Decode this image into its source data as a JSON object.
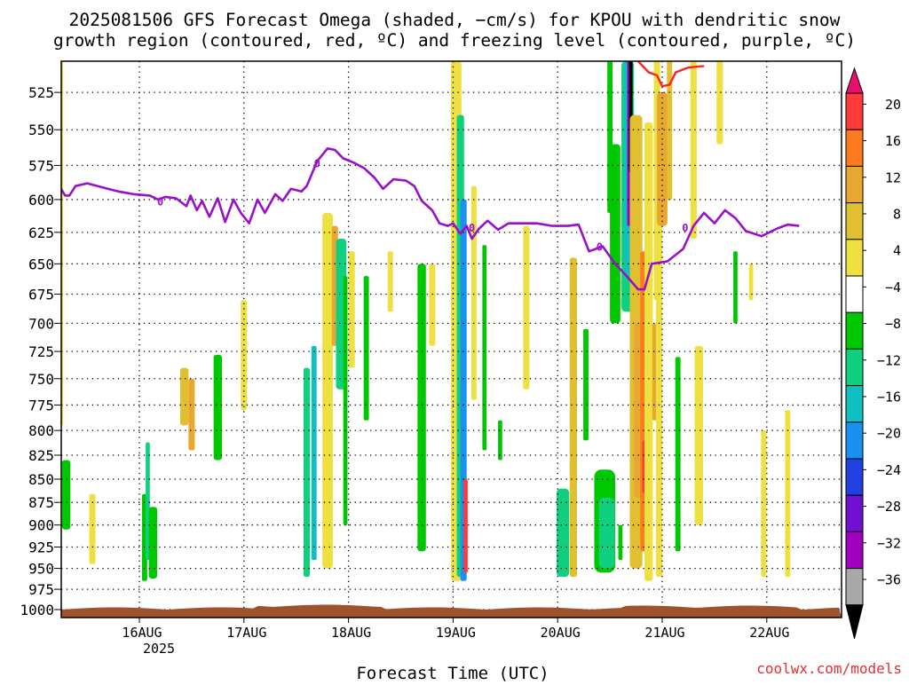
{
  "chart_data": {
    "type": "heatmap",
    "title_line1": "2025081506 GFS Forecast Omega (shaded, −cm/s) for KPOU with dendritic snow",
    "title_line2": "growth region (contoured, red, ºC) and freezing level (contoured, purple, ºC)",
    "xlabel": "Forecast Time (UTC)",
    "x_ticks": [
      "16AUG",
      "17AUG",
      "18AUG",
      "19AUG",
      "20AUG",
      "21AUG",
      "22AUG"
    ],
    "x_year_label": "2025",
    "xlim_days": [
      "15AUG 06Z",
      "22AUG 18Z"
    ],
    "y_ticks": [
      525,
      550,
      575,
      600,
      625,
      650,
      675,
      700,
      725,
      750,
      775,
      800,
      825,
      850,
      875,
      900,
      925,
      950,
      975,
      1000
    ],
    "ylim_hpa": [
      1010,
      505
    ],
    "y_scale": "pressure (inverted, log-like)",
    "grid": true,
    "colorbar": {
      "labels": [
        "20",
        "16",
        "12",
        "8",
        "4",
        "−4",
        "−8",
        "−12",
        "−16",
        "−20",
        "−24",
        "−28",
        "−32",
        "−36"
      ],
      "colors": [
        "#ff3a3a",
        "#ff7a1e",
        "#e8a830",
        "#e0c030",
        "#ede040",
        "#ffffff",
        "#00c800",
        "#10d080",
        "#10c0c0",
        "#1a90f0",
        "#2040e0",
        "#7010d0",
        "#a000c0",
        "#a8a8a8"
      ],
      "top_arrow_color": "#e8106c",
      "bottom_arrow_color": "#000000"
    },
    "freezing_level_color": "#9a10c8",
    "freezing_level_label": "0",
    "dgz_color": "#ff2020",
    "ground_color": "#a0522d",
    "freezing_level_hpa": [
      [
        0.0,
        592
      ],
      [
        0.04,
        597
      ],
      [
        0.08,
        597
      ],
      [
        0.14,
        590
      ],
      [
        0.25,
        588
      ],
      [
        0.4,
        591
      ],
      [
        0.55,
        594
      ],
      [
        0.7,
        596
      ],
      [
        0.85,
        597
      ],
      [
        0.93,
        600
      ],
      [
        1.0,
        598
      ],
      [
        1.1,
        599
      ],
      [
        1.2,
        605
      ],
      [
        1.24,
        597
      ],
      [
        1.3,
        608
      ],
      [
        1.35,
        601
      ],
      [
        1.42,
        613
      ],
      [
        1.5,
        599
      ],
      [
        1.57,
        617
      ],
      [
        1.65,
        600
      ],
      [
        1.72,
        610
      ],
      [
        1.8,
        618
      ],
      [
        1.88,
        600
      ],
      [
        1.95,
        610
      ],
      [
        2.05,
        596
      ],
      [
        2.12,
        601
      ],
      [
        2.2,
        592
      ],
      [
        2.3,
        594
      ],
      [
        2.35,
        590
      ],
      [
        2.45,
        572
      ],
      [
        2.55,
        563
      ],
      [
        2.62,
        564
      ],
      [
        2.7,
        570
      ],
      [
        2.8,
        573
      ],
      [
        2.9,
        577
      ],
      [
        3.0,
        584
      ],
      [
        3.08,
        592
      ],
      [
        3.18,
        585
      ],
      [
        3.3,
        586
      ],
      [
        3.38,
        590
      ],
      [
        3.45,
        601
      ],
      [
        3.55,
        608
      ],
      [
        3.62,
        618
      ],
      [
        3.7,
        620
      ],
      [
        3.75,
        618
      ],
      [
        3.82,
        626
      ],
      [
        3.88,
        620
      ],
      [
        3.93,
        630
      ],
      [
        4.0,
        622
      ],
      [
        4.08,
        616
      ],
      [
        4.18,
        623
      ],
      [
        4.28,
        618
      ],
      [
        4.4,
        618
      ],
      [
        4.55,
        618
      ],
      [
        4.7,
        620
      ],
      [
        4.85,
        620
      ],
      [
        4.95,
        619
      ],
      [
        5.05,
        640
      ],
      [
        5.18,
        636
      ],
      [
        5.3,
        650
      ],
      [
        5.42,
        661
      ],
      [
        5.52,
        671
      ],
      [
        5.58,
        671
      ],
      [
        5.65,
        650
      ],
      [
        5.8,
        648
      ],
      [
        5.95,
        638
      ],
      [
        6.05,
        620
      ],
      [
        6.15,
        610
      ],
      [
        6.25,
        618
      ],
      [
        6.35,
        608
      ],
      [
        6.45,
        614
      ],
      [
        6.55,
        624
      ],
      [
        6.7,
        628
      ],
      [
        6.85,
        622
      ],
      [
        6.95,
        619
      ],
      [
        7.06,
        620
      ]
    ],
    "dgz_hpa": [
      [
        5.52,
        505
      ],
      [
        5.62,
        512
      ],
      [
        5.7,
        514
      ],
      [
        5.75,
        521
      ],
      [
        5.82,
        520
      ],
      [
        5.88,
        512
      ],
      [
        6.0,
        509
      ],
      [
        6.15,
        508
      ]
    ],
    "omega_blobs": [
      {
        "t": 0.0,
        "hpa": [
          505,
          795
        ],
        "w": 0.04,
        "v": 4
      },
      {
        "t": 0.05,
        "hpa": [
          830,
          905
        ],
        "w": 0.08,
        "v": -6
      },
      {
        "t": 0.3,
        "hpa": [
          866,
          945
        ],
        "w": 0.06,
        "v": 4
      },
      {
        "t": 0.8,
        "hpa": [
          866,
          965
        ],
        "w": 0.05,
        "v": -6
      },
      {
        "t": 0.83,
        "hpa": [
          812,
          940
        ],
        "w": 0.04,
        "v": -10
      },
      {
        "t": 0.88,
        "hpa": [
          880,
          962
        ],
        "w": 0.08,
        "v": -6
      },
      {
        "t": 1.18,
        "hpa": [
          740,
          795
        ],
        "w": 0.08,
        "v": 6
      },
      {
        "t": 1.25,
        "hpa": [
          750,
          820
        ],
        "w": 0.06,
        "v": 10
      },
      {
        "t": 1.5,
        "hpa": [
          728,
          830
        ],
        "w": 0.08,
        "v": -6
      },
      {
        "t": 1.75,
        "hpa": [
          680,
          780
        ],
        "w": 0.06,
        "v": 4
      },
      {
        "t": 2.35,
        "hpa": [
          740,
          960
        ],
        "w": 0.06,
        "v": -8
      },
      {
        "t": 2.42,
        "hpa": [
          720,
          940
        ],
        "w": 0.05,
        "v": -12
      },
      {
        "t": 2.55,
        "hpa": [
          610,
          950
        ],
        "w": 0.1,
        "v": 4
      },
      {
        "t": 2.62,
        "hpa": [
          620,
          720
        ],
        "w": 0.06,
        "v": 8
      },
      {
        "t": 2.68,
        "hpa": [
          630,
          760
        ],
        "w": 0.1,
        "v": -8
      },
      {
        "t": 2.72,
        "hpa": [
          660,
          900
        ],
        "w": 0.04,
        "v": -6
      },
      {
        "t": 2.78,
        "hpa": [
          640,
          740
        ],
        "w": 0.06,
        "v": 4
      },
      {
        "t": 2.92,
        "hpa": [
          660,
          790
        ],
        "w": 0.05,
        "v": -6
      },
      {
        "t": 3.15,
        "hpa": [
          640,
          690
        ],
        "w": 0.05,
        "v": 4
      },
      {
        "t": 3.45,
        "hpa": [
          650,
          930
        ],
        "w": 0.08,
        "v": -6
      },
      {
        "t": 3.55,
        "hpa": [
          650,
          720
        ],
        "w": 0.06,
        "v": 4
      },
      {
        "t": 3.78,
        "hpa": [
          505,
          965
        ],
        "w": 0.1,
        "v": 4
      },
      {
        "t": 3.82,
        "hpa": [
          540,
          960
        ],
        "w": 0.07,
        "v": -10
      },
      {
        "t": 3.85,
        "hpa": [
          600,
          965
        ],
        "w": 0.06,
        "v": -16
      },
      {
        "t": 3.87,
        "hpa": [
          850,
          955
        ],
        "w": 0.04,
        "v": 18
      },
      {
        "t": 3.95,
        "hpa": [
          590,
          770
        ],
        "w": 0.05,
        "v": 4
      },
      {
        "t": 4.05,
        "hpa": [
          635,
          820
        ],
        "w": 0.04,
        "v": -6
      },
      {
        "t": 4.2,
        "hpa": [
          790,
          830
        ],
        "w": 0.04,
        "v": -6
      },
      {
        "t": 4.45,
        "hpa": [
          620,
          760
        ],
        "w": 0.06,
        "v": 4
      },
      {
        "t": 4.8,
        "hpa": [
          860,
          960
        ],
        "w": 0.12,
        "v": -8
      },
      {
        "t": 4.9,
        "hpa": [
          645,
          960
        ],
        "w": 0.07,
        "v": 6
      },
      {
        "t": 5.02,
        "hpa": [
          705,
          810
        ],
        "w": 0.05,
        "v": -6
      },
      {
        "t": 5.2,
        "hpa": [
          840,
          955
        ],
        "w": 0.2,
        "v": -6
      },
      {
        "t": 5.22,
        "hpa": [
          870,
          950
        ],
        "w": 0.15,
        "v": -10
      },
      {
        "t": 5.25,
        "hpa": [
          505,
          610
        ],
        "w": 0.05,
        "v": -6
      },
      {
        "t": 5.3,
        "hpa": [
          560,
          700
        ],
        "w": 0.1,
        "v": -6
      },
      {
        "t": 5.35,
        "hpa": [
          900,
          940
        ],
        "w": 0.04,
        "v": -6
      },
      {
        "t": 5.42,
        "hpa": [
          505,
          690
        ],
        "w": 0.12,
        "v": -8
      },
      {
        "t": 5.42,
        "hpa": [
          505,
          660
        ],
        "w": 0.07,
        "v": -14
      },
      {
        "t": 5.44,
        "hpa": [
          505,
          620
        ],
        "w": 0.05,
        "v": -30
      },
      {
        "t": 5.45,
        "hpa": [
          505,
          580
        ],
        "w": 0.03,
        "v": -40
      },
      {
        "t": 5.47,
        "hpa": [
          600,
          660
        ],
        "w": 0.05,
        "v": -22
      },
      {
        "t": 5.5,
        "hpa": [
          540,
          950
        ],
        "w": 0.12,
        "v": 6
      },
      {
        "t": 5.53,
        "hpa": [
          700,
          870
        ],
        "w": 0.1,
        "v": 10
      },
      {
        "t": 5.58,
        "hpa": [
          640,
          930
        ],
        "w": 0.08,
        "v": 14
      },
      {
        "t": 5.59,
        "hpa": [
          810,
          865
        ],
        "w": 0.06,
        "v": 18
      },
      {
        "t": 5.62,
        "hpa": [
          545,
          965
        ],
        "w": 0.08,
        "v": 5
      },
      {
        "t": 5.68,
        "hpa": [
          700,
          790
        ],
        "w": 0.05,
        "v": 8
      },
      {
        "t": 5.7,
        "hpa": [
          505,
          680
        ],
        "w": 0.06,
        "v": 4
      },
      {
        "t": 5.72,
        "hpa": [
          620,
          960
        ],
        "w": 0.06,
        "v": 4
      },
      {
        "t": 5.75,
        "hpa": [
          525,
          620
        ],
        "w": 0.1,
        "v": 10
      },
      {
        "t": 5.82,
        "hpa": [
          505,
          600
        ],
        "w": 0.05,
        "v": 6
      },
      {
        "t": 5.9,
        "hpa": [
          730,
          930
        ],
        "w": 0.05,
        "v": -6
      },
      {
        "t": 6.05,
        "hpa": [
          505,
          630
        ],
        "w": 0.06,
        "v": 4
      },
      {
        "t": 6.1,
        "hpa": [
          720,
          900
        ],
        "w": 0.08,
        "v": 4
      },
      {
        "t": 6.3,
        "hpa": [
          505,
          560
        ],
        "w": 0.06,
        "v": 4
      },
      {
        "t": 6.45,
        "hpa": [
          640,
          700
        ],
        "w": 0.04,
        "v": -6
      },
      {
        "t": 6.6,
        "hpa": [
          650,
          680
        ],
        "w": 0.04,
        "v": 4
      },
      {
        "t": 6.72,
        "hpa": [
          800,
          960
        ],
        "w": 0.05,
        "v": 4
      },
      {
        "t": 6.95,
        "hpa": [
          780,
          960
        ],
        "w": 0.05,
        "v": 4
      }
    ]
  },
  "watermark": "coolwx.com/models"
}
